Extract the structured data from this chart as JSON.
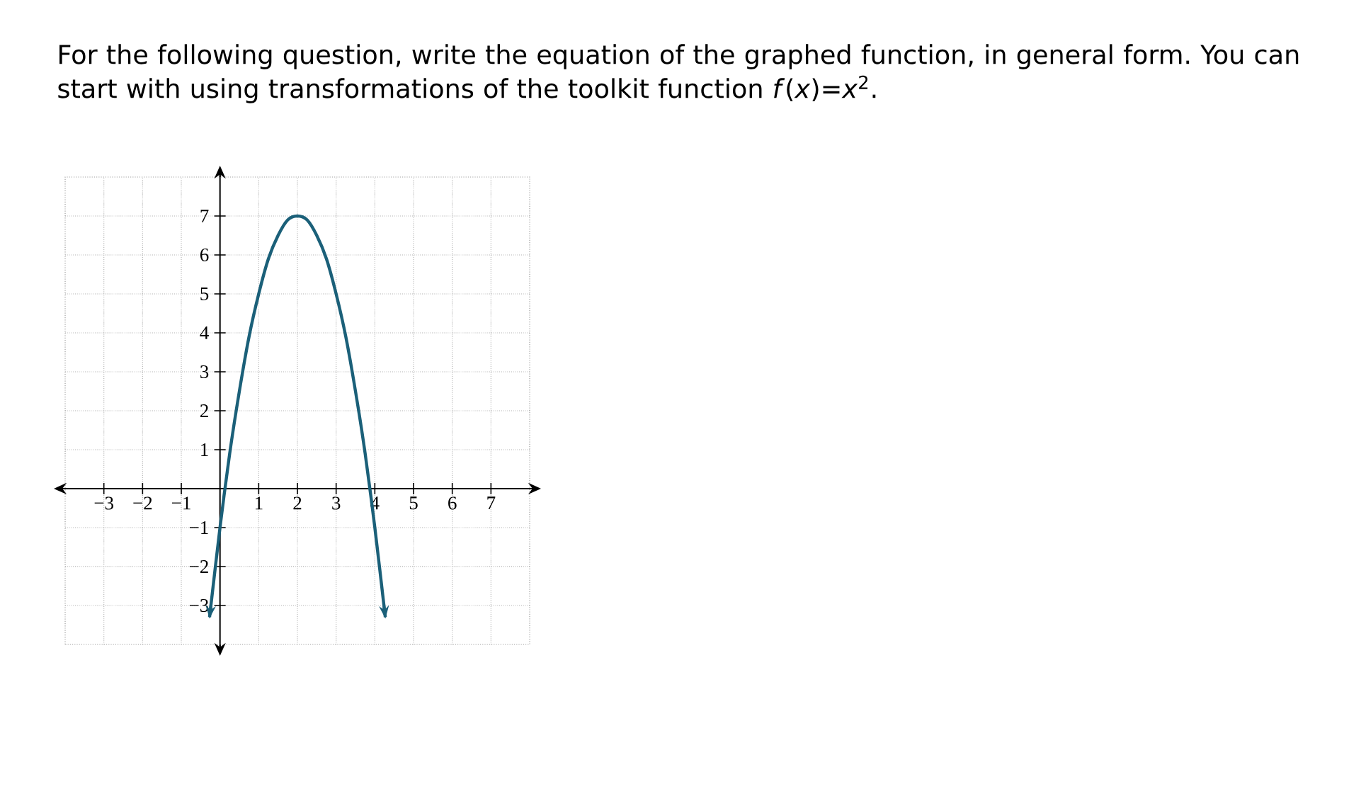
{
  "chart_data": {
    "type": "line",
    "title": "For the following question, write the equation of the graphed function, in general form. You can start with using transformations of the toolkit function *f*(*x*)=*x*$^{2}$.",
    "x": [
      -0.27,
      0,
      0.25,
      0.5,
      0.75,
      1,
      1.25,
      1.5,
      1.75,
      2,
      2.25,
      2.5,
      2.75,
      3,
      3.25,
      3.5,
      3.75,
      4,
      4.27
    ],
    "series": [
      {
        "color": "#1b6079",
        "values": [
          -3.3,
          -1,
          0.9,
          2.5,
          3.9,
          5,
          5.9,
          6.5,
          6.9,
          7,
          6.9,
          6.5,
          5.9,
          5,
          3.9,
          2.5,
          0.9,
          -1,
          -3.3
        ]
      }
    ],
    "xlim": [
      -4,
      8
    ],
    "ylim": [
      -4,
      8
    ],
    "xticks": [
      {
        "value": -3,
        "label": "−3"
      },
      {
        "value": -2,
        "label": "−2"
      },
      {
        "value": -1,
        "label": "−1"
      },
      1,
      2,
      3,
      4,
      5,
      6,
      7
    ],
    "yticks": [
      {
        "value": -3,
        "label": "−3"
      },
      {
        "value": -2,
        "label": "−2"
      },
      {
        "value": -1,
        "label": "−1"
      },
      1,
      2,
      3,
      4,
      5,
      6,
      7
    ],
    "grid": true,
    "marker": "none",
    "line_style": "solid"
  }
}
